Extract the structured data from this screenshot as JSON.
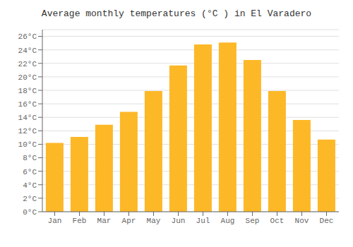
{
  "chart_data": {
    "type": "bar",
    "title": "Average monthly temperatures (°C ) in El Varadero",
    "categories": [
      "Jan",
      "Feb",
      "Mar",
      "Apr",
      "May",
      "Jun",
      "Jul",
      "Aug",
      "Sep",
      "Oct",
      "Nov",
      "Dec"
    ],
    "values": [
      10.2,
      11.1,
      12.9,
      14.8,
      17.9,
      21.7,
      24.8,
      25.1,
      22.5,
      17.9,
      13.6,
      10.7
    ],
    "color": "#FDB827",
    "ylim": [
      0,
      27
    ],
    "yticks": [
      {
        "value": 0,
        "label": "0°C"
      },
      {
        "value": 2,
        "label": "2°C"
      },
      {
        "value": 4,
        "label": "4°C"
      },
      {
        "value": 6,
        "label": "6°C"
      },
      {
        "value": 8,
        "label": "8°C"
      },
      {
        "value": 10,
        "label": "10°C"
      },
      {
        "value": 12,
        "label": "12°C"
      },
      {
        "value": 14,
        "label": "14°C"
      },
      {
        "value": 16,
        "label": "16°C"
      },
      {
        "value": 18,
        "label": "18°C"
      },
      {
        "value": 20,
        "label": "20°C"
      },
      {
        "value": 22,
        "label": "22°C"
      },
      {
        "value": 24,
        "label": "24°C"
      },
      {
        "value": 26,
        "label": "26°C"
      }
    ],
    "grid": true
  }
}
